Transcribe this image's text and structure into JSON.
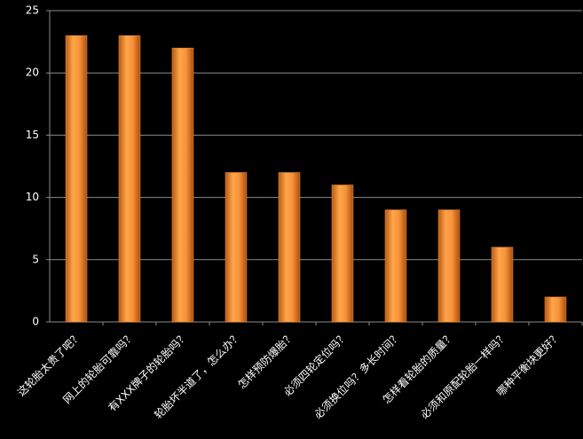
{
  "chart_data": {
    "type": "bar",
    "categories": [
      "这轮胎太贵了吧？",
      "网上的轮胎可靠吗？",
      "有XXX牌子的轮胎吗？",
      "轮胎坏半道了，怎么办？",
      "怎样预防爆胎？",
      "必须四轮定位吗？",
      "必须换位吗？多长时间？",
      "怎样看轮胎的质量？",
      "必须和原配轮胎一样吗？",
      "哪种平衡块更好？"
    ],
    "values": [
      23,
      23,
      22,
      12,
      12,
      11,
      9,
      9,
      6,
      2
    ],
    "color": "#f7923a",
    "ylim": [
      0,
      25
    ],
    "yticks": [
      0,
      5,
      10,
      15,
      20,
      25
    ],
    "grid": true
  }
}
